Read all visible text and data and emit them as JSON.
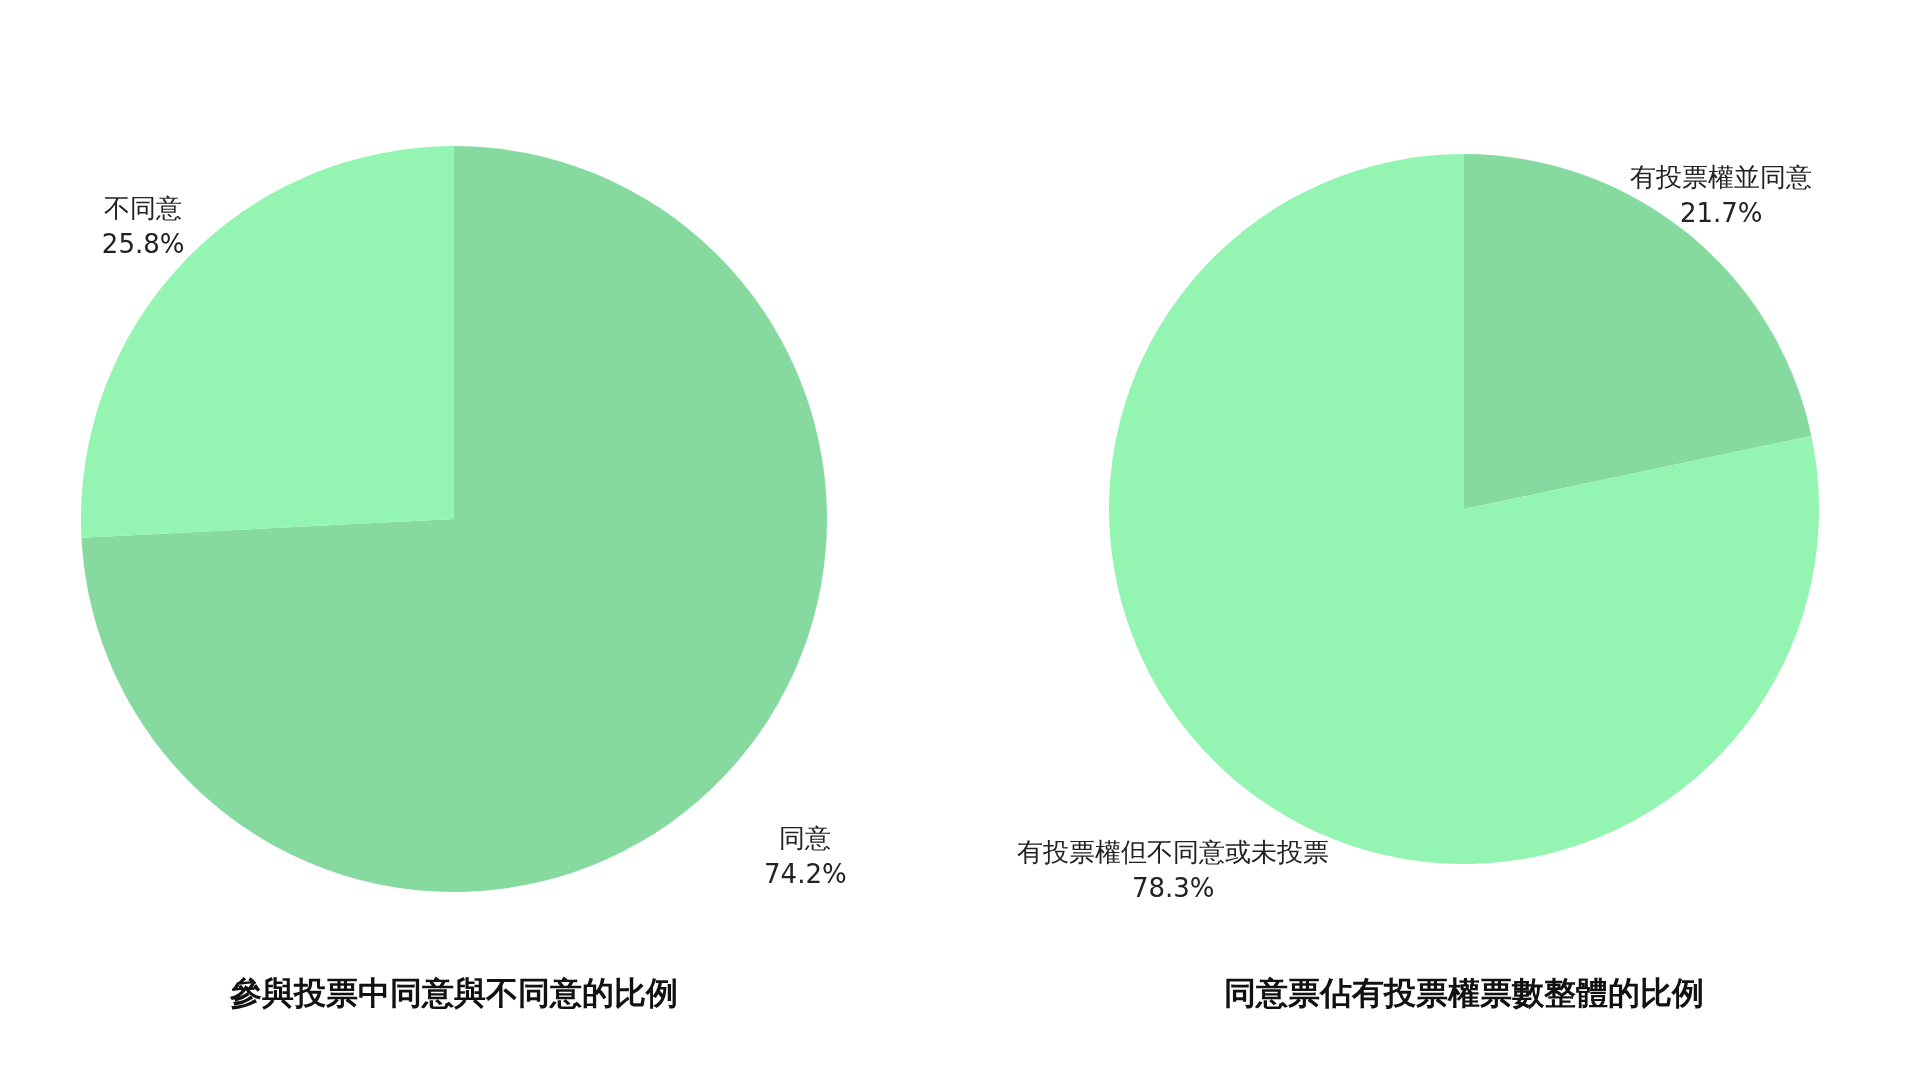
{
  "chart_data": [
    {
      "type": "pie",
      "title": "參與投票中同意與不同意的比例",
      "categories": [
        "同意",
        "不同意"
      ],
      "values": [
        74.2,
        25.8
      ],
      "colors": [
        "#86da9f",
        "#93f5b1"
      ],
      "value_labels": [
        "74.2%",
        "25.8%"
      ]
    },
    {
      "type": "pie",
      "title": "同意票佔有投票權票數整體的比例",
      "categories": [
        "有投票權並同意",
        "有投票權但不同意或未投票"
      ],
      "values": [
        21.7,
        78.3
      ],
      "colors": [
        "#86da9f",
        "#93f5b1"
      ],
      "value_labels": [
        "21.7%",
        "78.3%"
      ]
    }
  ]
}
